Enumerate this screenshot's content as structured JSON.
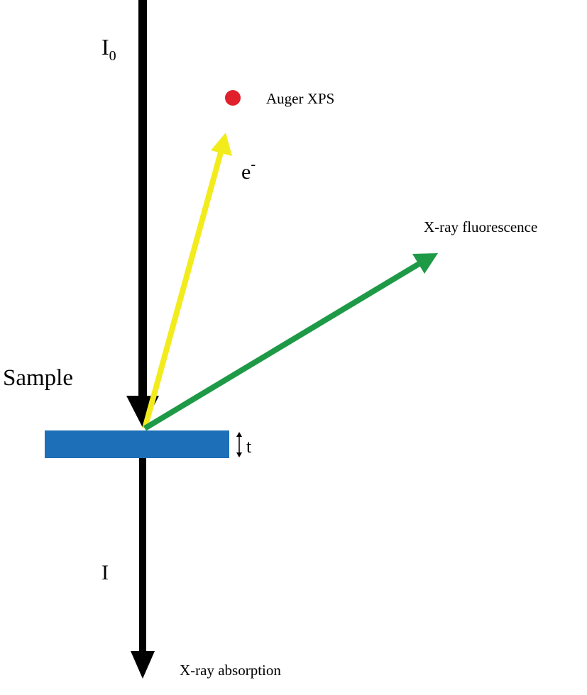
{
  "labels": {
    "incident": {
      "main": "I",
      "sub": "0"
    },
    "auger": "Auger XPS",
    "electron": {
      "main": "e",
      "sup": "-"
    },
    "fluorescence": "X-ray fluorescence",
    "sample": "Sample",
    "thickness": "t",
    "transmitted": "I",
    "absorption": "X-ray absorption"
  }
}
